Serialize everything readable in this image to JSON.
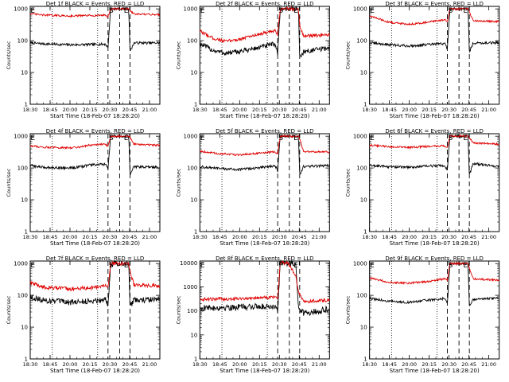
{
  "colors": {
    "events": "#000000",
    "lld": "#e00000",
    "axes": "#000000"
  },
  "chart_data": [
    {
      "type": "line",
      "title": "Det 1f BLACK = Events, RED = LLD",
      "xlabel": "Start Time (18-Feb-07 18:28:20)",
      "ylabel": "Counts/sec",
      "x_ticks": [
        "18:30",
        "18:45",
        "20:00",
        "20:15",
        "20:30",
        "20:45",
        "21:00"
      ],
      "y_ticks": [
        "1",
        "10",
        "100",
        "1000"
      ],
      "ylim": [
        1,
        1200
      ],
      "y_scale": "log",
      "markers": [
        "E",
        "S",
        "E"
      ],
      "series": [
        {
          "name": "Events",
          "color": "#000000",
          "noise": 0.04,
          "x": [
            0,
            0.1,
            0.3,
            0.5,
            0.58,
            0.6,
            0.62,
            0.7,
            0.76,
            0.77,
            0.8,
            1.0
          ],
          "y": [
            85,
            80,
            74,
            76,
            78,
            60,
            1000,
            1000,
            1000,
            45,
            85,
            85
          ]
        },
        {
          "name": "LLD",
          "color": "#e00000",
          "noise": 0.03,
          "x": [
            0,
            0.1,
            0.3,
            0.5,
            0.58,
            0.6,
            0.62,
            0.7,
            0.76,
            0.77,
            0.8,
            1.0
          ],
          "y": [
            700,
            640,
            600,
            620,
            640,
            560,
            1000,
            1000,
            1000,
            900,
            680,
            660
          ]
        }
      ]
    },
    {
      "type": "line",
      "title": "Det 2f BLACK = Events, RED = LLD",
      "xlabel": "Start Time (18-Feb-07 18:28:20)",
      "ylabel": "Counts/sec",
      "x_ticks": [
        "18:30",
        "18:45",
        "20:00",
        "20:15",
        "20:30",
        "20:45",
        "21:00"
      ],
      "y_ticks": [
        "1",
        "10",
        "100",
        "1000"
      ],
      "ylim": [
        1,
        1200
      ],
      "y_scale": "log",
      "markers": [
        "E",
        "S",
        "E"
      ],
      "series": [
        {
          "name": "Events",
          "color": "#000000",
          "noise": 0.08,
          "x": [
            0,
            0.1,
            0.2,
            0.3,
            0.45,
            0.55,
            0.58,
            0.6,
            0.62,
            0.7,
            0.76,
            0.77,
            0.8,
            1.0
          ],
          "y": [
            80,
            50,
            40,
            45,
            60,
            75,
            80,
            40,
            1000,
            1000,
            1000,
            30,
            45,
            60
          ]
        },
        {
          "name": "LLD",
          "color": "#e00000",
          "noise": 0.05,
          "x": [
            0,
            0.1,
            0.2,
            0.3,
            0.45,
            0.55,
            0.58,
            0.6,
            0.62,
            0.7,
            0.76,
            0.77,
            0.8,
            1.0
          ],
          "y": [
            200,
            120,
            95,
            110,
            160,
            190,
            200,
            150,
            1000,
            1000,
            1000,
            300,
            140,
            150
          ]
        }
      ]
    },
    {
      "type": "line",
      "title": "Det 3f BLACK = Events, RED = LLD",
      "xlabel": "Start Time (18-Feb-07 18:28:20)",
      "ylabel": "Counts/sec",
      "x_ticks": [
        "18:30",
        "18:45",
        "20:00",
        "20:15",
        "20:30",
        "20:45",
        "21:00"
      ],
      "y_ticks": [
        "1",
        "10",
        "100",
        "1000"
      ],
      "ylim": [
        1,
        1200
      ],
      "y_scale": "log",
      "markers": [
        "E",
        "S",
        "E"
      ],
      "series": [
        {
          "name": "Events",
          "color": "#000000",
          "noise": 0.04,
          "x": [
            0,
            0.15,
            0.3,
            0.45,
            0.58,
            0.6,
            0.62,
            0.7,
            0.76,
            0.77,
            0.8,
            1.0
          ],
          "y": [
            85,
            75,
            68,
            75,
            82,
            55,
            1000,
            1000,
            1000,
            45,
            85,
            85
          ]
        },
        {
          "name": "LLD",
          "color": "#e00000",
          "noise": 0.03,
          "x": [
            0,
            0.15,
            0.3,
            0.45,
            0.58,
            0.6,
            0.62,
            0.7,
            0.76,
            0.77,
            0.8,
            1.0
          ],
          "y": [
            600,
            380,
            330,
            380,
            460,
            380,
            1000,
            1000,
            1000,
            800,
            420,
            400
          ]
        }
      ]
    },
    {
      "type": "line",
      "title": "Det 4f BLACK = Events, RED = LLD",
      "xlabel": "Start Time (18-Feb-07 18:28:20)",
      "ylabel": "Counts/sec",
      "x_ticks": [
        "18:30",
        "18:45",
        "20:00",
        "20:15",
        "20:30",
        "20:45",
        "21:00"
      ],
      "y_ticks": [
        "1",
        "10",
        "100",
        "1000"
      ],
      "ylim": [
        1,
        1200
      ],
      "y_scale": "log",
      "markers": [
        "E",
        "S",
        "E"
      ],
      "series": [
        {
          "name": "Events",
          "color": "#000000",
          "noise": 0.04,
          "x": [
            0,
            0.1,
            0.3,
            0.4,
            0.45,
            0.58,
            0.6,
            0.62,
            0.7,
            0.76,
            0.77,
            0.8,
            1.0
          ],
          "y": [
            120,
            105,
            100,
            110,
            125,
            130,
            90,
            1000,
            1000,
            1000,
            60,
            110,
            105
          ]
        },
        {
          "name": "LLD",
          "color": "#e00000",
          "noise": 0.03,
          "x": [
            0,
            0.1,
            0.3,
            0.4,
            0.45,
            0.58,
            0.6,
            0.62,
            0.7,
            0.76,
            0.77,
            0.8,
            1.0
          ],
          "y": [
            500,
            450,
            430,
            470,
            520,
            560,
            480,
            1000,
            1000,
            1000,
            900,
            560,
            520
          ]
        }
      ]
    },
    {
      "type": "line",
      "title": "Det 5f BLACK = Events, RED = LLD",
      "xlabel": "Start Time (18-Feb-07 18:28:20)",
      "ylabel": "Counts/sec",
      "x_ticks": [
        "18:30",
        "18:45",
        "20:00",
        "20:15",
        "20:30",
        "20:45",
        "21:00"
      ],
      "y_ticks": [
        "1",
        "10",
        "100",
        "1000"
      ],
      "ylim": [
        1,
        1200
      ],
      "y_scale": "log",
      "markers": [
        "E",
        "S",
        "E"
      ],
      "series": [
        {
          "name": "Events",
          "color": "#000000",
          "noise": 0.04,
          "x": [
            0,
            0.15,
            0.3,
            0.45,
            0.58,
            0.6,
            0.62,
            0.7,
            0.76,
            0.77,
            0.8,
            1.0
          ],
          "y": [
            110,
            95,
            90,
            100,
            120,
            80,
            1000,
            1000,
            1000,
            60,
            110,
            120
          ]
        },
        {
          "name": "LLD",
          "color": "#e00000",
          "noise": 0.03,
          "x": [
            0,
            0.15,
            0.3,
            0.45,
            0.58,
            0.6,
            0.62,
            0.7,
            0.76,
            0.77,
            0.8,
            1.0
          ],
          "y": [
            340,
            280,
            260,
            290,
            320,
            280,
            1000,
            1000,
            1000,
            800,
            330,
            320
          ]
        }
      ]
    },
    {
      "type": "line",
      "title": "Det 6f BLACK = Events, RED = LLD",
      "xlabel": "Start Time (18-Feb-07 18:28:20)",
      "ylabel": "Counts/sec",
      "x_ticks": [
        "18:30",
        "18:45",
        "20:00",
        "20:15",
        "20:30",
        "20:45",
        "21:00"
      ],
      "y_ticks": [
        "1",
        "10",
        "100",
        "1000"
      ],
      "ylim": [
        1,
        1200
      ],
      "y_scale": "log",
      "markers": [
        "E",
        "S",
        "E"
      ],
      "series": [
        {
          "name": "Events",
          "color": "#000000",
          "noise": 0.04,
          "x": [
            0,
            0.15,
            0.3,
            0.45,
            0.58,
            0.6,
            0.62,
            0.7,
            0.76,
            0.77,
            0.8,
            1.0
          ],
          "y": [
            120,
            110,
            105,
            115,
            120,
            85,
            1000,
            1000,
            1000,
            60,
            140,
            110
          ]
        },
        {
          "name": "LLD",
          "color": "#e00000",
          "noise": 0.03,
          "x": [
            0,
            0.15,
            0.3,
            0.45,
            0.58,
            0.6,
            0.62,
            0.7,
            0.76,
            0.77,
            0.8,
            1.0
          ],
          "y": [
            520,
            470,
            440,
            480,
            500,
            420,
            1000,
            1000,
            1000,
            900,
            620,
            560
          ]
        }
      ]
    },
    {
      "type": "line",
      "title": "Det 7f BLACK = Events, RED = LLD",
      "xlabel": "Start Time (18-Feb-07 18:28:20)",
      "ylabel": "Counts/sec",
      "x_ticks": [
        "18:30",
        "18:45",
        "20:00",
        "20:15",
        "20:30",
        "20:45",
        "21:00"
      ],
      "y_ticks": [
        "1",
        "10",
        "100",
        "1000"
      ],
      "ylim": [
        1,
        1200
      ],
      "y_scale": "log",
      "markers": [
        "E",
        "S",
        "E"
      ],
      "series": [
        {
          "name": "Events",
          "color": "#000000",
          "noise": 0.09,
          "x": [
            0,
            0.1,
            0.3,
            0.45,
            0.58,
            0.6,
            0.62,
            0.7,
            0.76,
            0.77,
            0.8,
            1.0
          ],
          "y": [
            90,
            70,
            60,
            65,
            75,
            50,
            1000,
            1000,
            1000,
            45,
            70,
            75
          ]
        },
        {
          "name": "LLD",
          "color": "#e00000",
          "noise": 0.06,
          "x": [
            0,
            0.1,
            0.3,
            0.45,
            0.58,
            0.6,
            0.62,
            0.7,
            0.76,
            0.77,
            0.8,
            1.0
          ],
          "y": [
            250,
            180,
            160,
            170,
            200,
            180,
            1000,
            1000,
            1000,
            600,
            210,
            200
          ]
        }
      ]
    },
    {
      "type": "line",
      "title": "Det 8f BLACK = Events, RED = LLD",
      "xlabel": "Start Time (18-Feb-07 18:28:20)",
      "ylabel": "Counts/sec",
      "x_ticks": [
        "18:30",
        "18:45",
        "20:00",
        "20:15",
        "20:30",
        "20:45",
        "21:00"
      ],
      "y_ticks": [
        "1",
        "10",
        "100",
        "1000",
        "10000"
      ],
      "ylim": [
        1,
        12000
      ],
      "y_scale": "log",
      "markers": [
        "E",
        "P",
        "E"
      ],
      "series": [
        {
          "name": "Events",
          "color": "#000000",
          "noise": 0.13,
          "x": [
            0,
            0.2,
            0.4,
            0.58,
            0.6,
            0.62,
            0.68,
            0.74,
            0.76,
            0.8,
            1.0
          ],
          "y": [
            130,
            140,
            150,
            160,
            100,
            10000,
            10000,
            10000,
            150,
            80,
            120
          ]
        },
        {
          "name": "LLD",
          "color": "#e00000",
          "noise": 0.07,
          "x": [
            0,
            0.2,
            0.4,
            0.58,
            0.6,
            0.62,
            0.68,
            0.74,
            0.76,
            0.8,
            1.0
          ],
          "y": [
            300,
            320,
            340,
            380,
            350,
            10000,
            10000,
            3000,
            600,
            250,
            280
          ]
        }
      ]
    },
    {
      "type": "line",
      "title": "Det 9f BLACK = Events, RED = LLD",
      "xlabel": "Start Time (18-Feb-07 18:28:20)",
      "ylabel": "Counts/sec",
      "x_ticks": [
        "18:30",
        "18:45",
        "20:00",
        "20:15",
        "20:30",
        "20:45",
        "21:00"
      ],
      "y_ticks": [
        "1",
        "10",
        "100",
        "1000"
      ],
      "ylim": [
        1,
        1200
      ],
      "y_scale": "log",
      "markers": [
        "E",
        "S",
        "E"
      ],
      "series": [
        {
          "name": "Events",
          "color": "#000000",
          "noise": 0.04,
          "x": [
            0,
            0.15,
            0.3,
            0.45,
            0.58,
            0.6,
            0.62,
            0.7,
            0.76,
            0.77,
            0.8,
            1.0
          ],
          "y": [
            80,
            65,
            60,
            70,
            80,
            55,
            1000,
            1000,
            1000,
            45,
            75,
            80
          ]
        },
        {
          "name": "LLD",
          "color": "#e00000",
          "noise": 0.03,
          "x": [
            0,
            0.15,
            0.3,
            0.45,
            0.58,
            0.6,
            0.62,
            0.7,
            0.76,
            0.77,
            0.8,
            1.0
          ],
          "y": [
            350,
            260,
            240,
            270,
            330,
            300,
            1000,
            1000,
            1000,
            700,
            330,
            300
          ]
        }
      ]
    }
  ]
}
